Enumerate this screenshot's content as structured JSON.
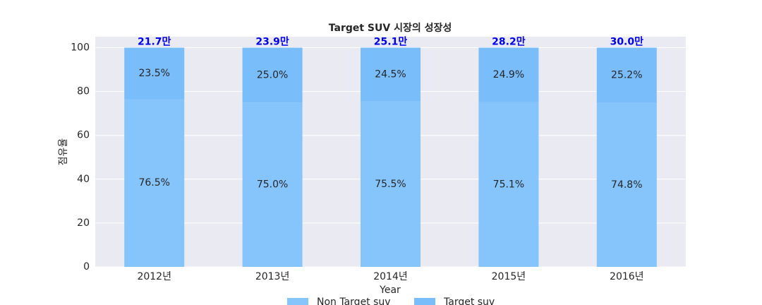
{
  "chart_data": {
    "type": "stacked_bar",
    "title": "Target SUV 시장의 성장성",
    "xlabel": "Year",
    "ylabel": "점유율",
    "categories": [
      "2012년",
      "2013년",
      "2014년",
      "2015년",
      "2016년"
    ],
    "series": [
      {
        "name": "Non Target suv",
        "color": "#86c5fb",
        "values": [
          76.5,
          75.0,
          75.5,
          75.1,
          74.8
        ],
        "value_labels": [
          "76.5%",
          "75.0%",
          "75.5%",
          "75.1%",
          "74.8%"
        ]
      },
      {
        "name": "Target suv",
        "color": "#79bdfb",
        "values": [
          23.5,
          25.0,
          24.5,
          24.9,
          25.2
        ],
        "value_labels": [
          "23.5%",
          "25.0%",
          "24.5%",
          "24.9%",
          "25.2%"
        ]
      }
    ],
    "annotations": [
      "21.7만",
      "23.9만",
      "25.1만",
      "28.2만",
      "30.0만"
    ],
    "ylim": [
      0,
      105
    ],
    "yticks": [
      0,
      20,
      40,
      60,
      80,
      100
    ],
    "grid": true,
    "legend": "bottom"
  }
}
